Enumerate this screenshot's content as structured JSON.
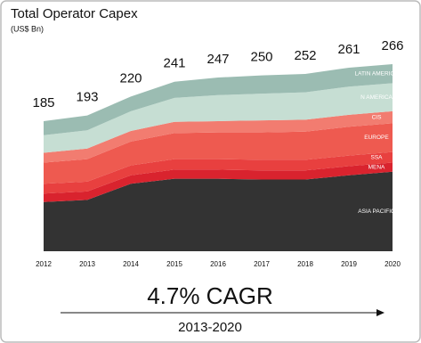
{
  "chart_data": {
    "type": "stacked-area",
    "title": "Total Operator Capex",
    "subtitle": "(US$ Bn)",
    "categories": [
      "2012",
      "2013",
      "2014",
      "2015",
      "2016",
      "2017",
      "2018",
      "2019",
      "2020"
    ],
    "totals": [
      185,
      193,
      220,
      241,
      247,
      250,
      252,
      261,
      266
    ],
    "series": [
      {
        "name": "ASIA PACIFIC",
        "color": "#333333",
        "values": [
          70,
          73,
          96,
          103,
          103,
          102,
          102,
          108,
          113
        ]
      },
      {
        "name": "MENA",
        "color": "#d9232e",
        "values": [
          12,
          12,
          12,
          13,
          13,
          13,
          13,
          13,
          13
        ]
      },
      {
        "name": "SSA",
        "color": "#e8403f",
        "values": [
          14,
          14,
          14,
          15,
          15,
          15,
          15,
          15,
          15
        ]
      },
      {
        "name": "EUROPE",
        "color": "#ee5a50",
        "values": [
          30,
          32,
          34,
          37,
          38,
          39,
          40,
          41,
          41
        ]
      },
      {
        "name": "CIS",
        "color": "#f27c70",
        "values": [
          14,
          15,
          15,
          16,
          16,
          17,
          17,
          17,
          17
        ]
      },
      {
        "name": "N AMERICA",
        "color": "#c6ded3",
        "values": [
          25,
          26,
          28,
          34,
          37,
          38,
          39,
          40,
          40
        ]
      },
      {
        "name": "LATIN AMERICA",
        "color": "#9bbcb2",
        "values": [
          20,
          21,
          21,
          23,
          25,
          26,
          26,
          27,
          27
        ]
      }
    ],
    "cagr_label": "4.7% CAGR",
    "cagr_period": "2013-2020"
  }
}
